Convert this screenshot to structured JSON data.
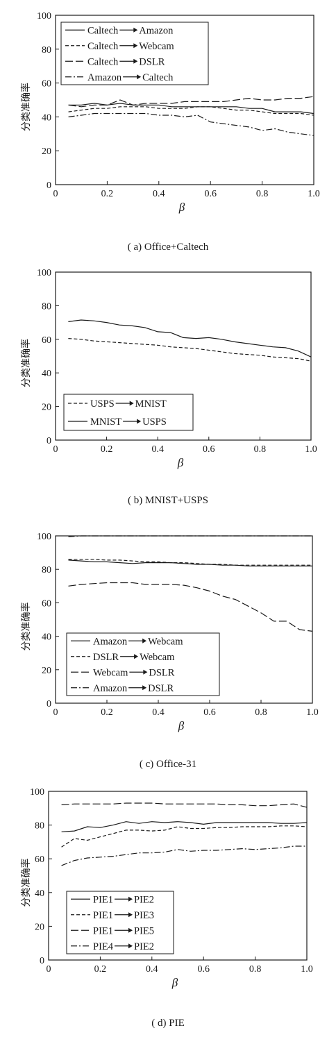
{
  "chart_data": [
    {
      "type": "line",
      "caption": "( a) Office+Caltech",
      "xlabel": "β",
      "ylabel": "分类准确率",
      "xlim": [
        0,
        1.0
      ],
      "ylim": [
        0,
        100
      ],
      "xticks": [
        "0",
        "0.2",
        "0.4",
        "0.6",
        "0.8",
        "1.0"
      ],
      "yticks": [
        "0",
        "20",
        "40",
        "60",
        "80",
        "100"
      ],
      "legend_position": "top-left",
      "series": [
        {
          "source": "Caltech",
          "target": "Amazon",
          "style": "solid",
          "x": [
            0.05,
            0.1,
            0.15,
            0.2,
            0.25,
            0.3,
            0.35,
            0.4,
            0.45,
            0.5,
            0.55,
            0.6,
            0.65,
            0.7,
            0.75,
            0.8,
            0.85,
            0.9,
            0.95,
            1.0
          ],
          "y": [
            47,
            47,
            48,
            47,
            48,
            47,
            47,
            47,
            46,
            46,
            46,
            46,
            46,
            46,
            45,
            45,
            43,
            43,
            43,
            42
          ]
        },
        {
          "source": "Caltech",
          "target": "Webcam",
          "style": "dashed",
          "x": [
            0.05,
            0.1,
            0.15,
            0.2,
            0.25,
            0.3,
            0.35,
            0.4,
            0.45,
            0.5,
            0.55,
            0.6,
            0.65,
            0.7,
            0.75,
            0.8,
            0.85,
            0.9,
            0.95,
            1.0
          ],
          "y": [
            43,
            44,
            45,
            45,
            46,
            46,
            46,
            45,
            45,
            45,
            46,
            46,
            45,
            44,
            44,
            43,
            42,
            42,
            42,
            41
          ]
        },
        {
          "source": "Caltech",
          "target": "DSLR",
          "style": "longdash",
          "x": [
            0.05,
            0.1,
            0.15,
            0.2,
            0.25,
            0.3,
            0.35,
            0.4,
            0.45,
            0.5,
            0.55,
            0.6,
            0.65,
            0.7,
            0.75,
            0.8,
            0.85,
            0.9,
            0.95,
            1.0
          ],
          "y": [
            47,
            46,
            47,
            47,
            50,
            47,
            48,
            48,
            48,
            49,
            49,
            49,
            49,
            50,
            51,
            50,
            50,
            51,
            51,
            52
          ]
        },
        {
          "source": "Amazon",
          "target": "Caltech",
          "style": "dashdot",
          "x": [
            0.05,
            0.1,
            0.15,
            0.2,
            0.25,
            0.3,
            0.35,
            0.4,
            0.45,
            0.5,
            0.55,
            0.6,
            0.65,
            0.7,
            0.75,
            0.8,
            0.85,
            0.9,
            0.95,
            1.0
          ],
          "y": [
            40,
            41,
            42,
            42,
            42,
            42,
            42,
            41,
            41,
            40,
            41,
            37,
            36,
            35,
            34,
            32,
            33,
            31,
            30,
            29
          ]
        }
      ]
    },
    {
      "type": "line",
      "caption": "( b) MNIST+USPS",
      "xlabel": "β",
      "ylabel": "分类准确率",
      "xlim": [
        0,
        1.0
      ],
      "ylim": [
        0,
        100
      ],
      "xticks": [
        "0",
        "0.2",
        "0.4",
        "0.6",
        "0.8",
        "1.0"
      ],
      "yticks": [
        "0",
        "20",
        "40",
        "60",
        "80",
        "100"
      ],
      "legend_position": "bottom-left",
      "series": [
        {
          "source": "USPS",
          "target": "MNIST",
          "style": "dashed",
          "x": [
            0.05,
            0.1,
            0.15,
            0.2,
            0.25,
            0.3,
            0.35,
            0.4,
            0.45,
            0.5,
            0.55,
            0.6,
            0.65,
            0.7,
            0.75,
            0.8,
            0.85,
            0.9,
            0.95,
            1.0
          ],
          "y": [
            60.5,
            60,
            59,
            58.5,
            58,
            57.5,
            57,
            56.5,
            55.5,
            55,
            54.5,
            53.5,
            52.5,
            51.5,
            51,
            50.5,
            49.5,
            49,
            48.5,
            47
          ]
        },
        {
          "source": "MNIST",
          "target": "USPS",
          "style": "solid",
          "x": [
            0.05,
            0.1,
            0.15,
            0.2,
            0.25,
            0.3,
            0.35,
            0.4,
            0.45,
            0.5,
            0.55,
            0.6,
            0.65,
            0.7,
            0.75,
            0.8,
            0.85,
            0.9,
            0.95,
            1.0
          ],
          "y": [
            70.5,
            71.5,
            71,
            70,
            68.5,
            68,
            67,
            64.5,
            64,
            61,
            60.5,
            61,
            60,
            58.5,
            57.5,
            56.5,
            55.5,
            55,
            53,
            49.5
          ]
        }
      ]
    },
    {
      "type": "line",
      "caption": "( c) Office-31",
      "xlabel": "β",
      "ylabel": "分类准确率",
      "xlim": [
        0,
        1.0
      ],
      "ylim": [
        0,
        100
      ],
      "xticks": [
        "0",
        "0.2",
        "0.4",
        "0.6",
        "0.8",
        "1.0"
      ],
      "yticks": [
        "0",
        "20",
        "40",
        "60",
        "80",
        "100"
      ],
      "legend_position": "bottom-left",
      "series": [
        {
          "source": "Amazon",
          "target": "Webcam",
          "style": "solid",
          "x": [
            0.05,
            0.1,
            0.15,
            0.2,
            0.25,
            0.3,
            0.35,
            0.4,
            0.45,
            0.5,
            0.55,
            0.6,
            0.65,
            0.7,
            0.75,
            0.8,
            0.85,
            0.9,
            0.95,
            1.0
          ],
          "y": [
            85.5,
            85,
            84.5,
            84.5,
            84,
            83.5,
            84,
            84,
            84,
            83.5,
            83,
            83,
            82.5,
            82.5,
            82,
            82,
            82,
            82,
            82,
            82
          ]
        },
        {
          "source": "DSLR",
          "target": "Webcam",
          "style": "dashed",
          "x": [
            0.05,
            0.1,
            0.15,
            0.2,
            0.25,
            0.3,
            0.35,
            0.4,
            0.45,
            0.5,
            0.55,
            0.6,
            0.65,
            0.7,
            0.75,
            0.8,
            0.85,
            0.9,
            0.95,
            1.0
          ],
          "y": [
            86,
            86,
            86,
            85.5,
            85.5,
            85,
            84.5,
            84.5,
            84,
            84,
            83.5,
            83,
            83,
            82.5,
            82.5,
            82.5,
            82.5,
            82.5,
            82.5,
            82.5
          ]
        },
        {
          "source": "Webcam",
          "target": "DSLR",
          "style": "longdash",
          "x": [
            0.05,
            0.1,
            0.15,
            0.2,
            0.25,
            0.3,
            0.35,
            0.4,
            0.45,
            0.5,
            0.55,
            0.6,
            0.65,
            0.7,
            0.75,
            0.8,
            0.85,
            0.9,
            0.95,
            1.0
          ],
          "y": [
            70,
            71,
            71.5,
            72,
            72,
            72,
            71,
            71,
            71,
            70.5,
            69,
            67,
            64,
            62,
            58,
            54,
            49,
            49,
            44,
            43
          ]
        },
        {
          "source": "Amazon",
          "target": "DSLR",
          "style": "dashdot",
          "x": [
            0.05,
            0.1,
            0.15,
            0.2,
            0.25,
            0.3,
            0.35,
            0.4,
            0.45,
            0.5,
            0.55,
            0.6,
            0.65,
            0.7,
            0.75,
            0.8,
            0.85,
            0.9,
            0.95,
            1.0
          ],
          "y": [
            99.5,
            100,
            100,
            100,
            100,
            100,
            100,
            100,
            100,
            100,
            100,
            100,
            100,
            100,
            100,
            100,
            100,
            100,
            100,
            100
          ]
        }
      ]
    },
    {
      "type": "line",
      "caption": "( d) PIE",
      "xlabel": "β",
      "ylabel": "分类准确率",
      "xlim": [
        0,
        1.0
      ],
      "ylim": [
        0,
        100
      ],
      "xticks": [
        "0",
        "0.2",
        "0.4",
        "0.6",
        "0.8",
        "1.0"
      ],
      "yticks": [
        "0",
        "20",
        "40",
        "60",
        "80",
        "100"
      ],
      "legend_position": "bottom-left",
      "series": [
        {
          "source": "PIE1",
          "target": "PIE2",
          "style": "solid",
          "x": [
            0.05,
            0.1,
            0.15,
            0.2,
            0.25,
            0.3,
            0.35,
            0.4,
            0.45,
            0.5,
            0.55,
            0.6,
            0.65,
            0.7,
            0.75,
            0.8,
            0.85,
            0.9,
            0.95,
            1.0
          ],
          "y": [
            76,
            76.5,
            79,
            78.5,
            80,
            82,
            81,
            82,
            81.5,
            82,
            81.5,
            80.5,
            81.5,
            81.5,
            81.5,
            81.5,
            81.5,
            81,
            81,
            81.5
          ]
        },
        {
          "source": "PIE1",
          "target": "PIE3",
          "style": "dashed",
          "x": [
            0.05,
            0.1,
            0.15,
            0.2,
            0.25,
            0.3,
            0.35,
            0.4,
            0.45,
            0.5,
            0.55,
            0.6,
            0.65,
            0.7,
            0.75,
            0.8,
            0.85,
            0.9,
            0.95,
            1.0
          ],
          "y": [
            67,
            72,
            71,
            73,
            75,
            77,
            77,
            76.5,
            77,
            79,
            78,
            78,
            78.5,
            78.5,
            79,
            79,
            79,
            79.5,
            79.5,
            79
          ]
        },
        {
          "source": "PIE1",
          "target": "PIE5",
          "style": "longdash",
          "x": [
            0.05,
            0.1,
            0.15,
            0.2,
            0.25,
            0.3,
            0.35,
            0.4,
            0.45,
            0.5,
            0.55,
            0.6,
            0.65,
            0.7,
            0.75,
            0.8,
            0.85,
            0.9,
            0.95,
            1.0
          ],
          "y": [
            92,
            92.5,
            92.5,
            92.5,
            92.5,
            93,
            93,
            93,
            92.5,
            92.5,
            92.5,
            92.5,
            92.5,
            92,
            92,
            91.5,
            91.5,
            92,
            92.5,
            90.5
          ]
        },
        {
          "source": "PIE4",
          "target": "PIE2",
          "style": "dashdot",
          "x": [
            0.05,
            0.1,
            0.15,
            0.2,
            0.25,
            0.3,
            0.35,
            0.4,
            0.45,
            0.5,
            0.55,
            0.6,
            0.65,
            0.7,
            0.75,
            0.8,
            0.85,
            0.9,
            0.95,
            1.0
          ],
          "y": [
            56,
            59,
            60.5,
            61,
            61.5,
            62.5,
            63.5,
            63.5,
            64,
            65.5,
            64.5,
            65,
            65,
            65.5,
            66,
            65.5,
            66,
            66.5,
            67.5,
            67.5
          ]
        }
      ]
    }
  ]
}
